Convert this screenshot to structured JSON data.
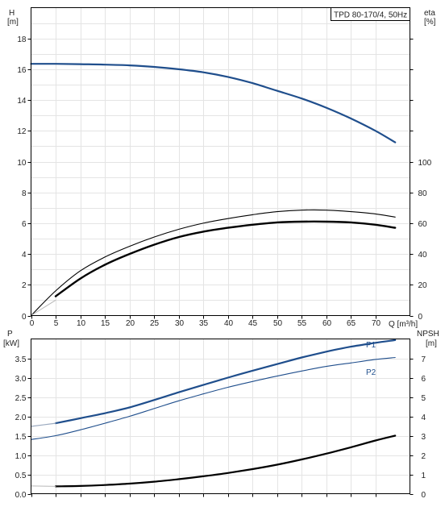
{
  "chart_data": [
    {
      "type": "line",
      "title_box": "TPD 80-170/4, 50Hz",
      "ylabel_left": "H",
      "ylabel_left_unit": "[m]",
      "ylabel_right": "eta",
      "ylabel_right_unit": "[%]",
      "xlabel": "Q [m³/h]",
      "xlim": [
        0,
        77
      ],
      "ylim_left": [
        0,
        20
      ],
      "ylim_right": [
        0,
        200
      ],
      "x_ticks": [
        "0",
        "5",
        "10",
        "15",
        "20",
        "25",
        "30",
        "35",
        "40",
        "45",
        "50",
        "55",
        "60",
        "65",
        "70"
      ],
      "y_left_ticks": [
        "0",
        "2",
        "4",
        "6",
        "8",
        "10",
        "12",
        "14",
        "16",
        "18"
      ],
      "y_right_ticks": [
        "0",
        "20",
        "40",
        "60",
        "80",
        "100"
      ],
      "grid": true,
      "colors": {
        "head": "#1f4e8c",
        "eta": "#000000"
      },
      "series": [
        {
          "axis": "left",
          "style": "head",
          "x": [
            0,
            5,
            10,
            15,
            20,
            25,
            30,
            35,
            40,
            45,
            50,
            55,
            60,
            65,
            70,
            74
          ],
          "values": [
            16.35,
            16.35,
            16.33,
            16.3,
            16.25,
            16.15,
            16.0,
            15.8,
            15.5,
            15.1,
            14.6,
            14.1,
            13.5,
            12.8,
            12.0,
            11.25
          ]
        },
        {
          "axis": "right",
          "style": "eta-thin",
          "x": [
            0,
            5,
            10,
            15,
            20,
            25,
            30,
            35,
            40,
            45,
            50,
            55,
            60,
            65,
            70,
            74
          ],
          "values": [
            0,
            16,
            29,
            38,
            45,
            51,
            56,
            60,
            63,
            65.5,
            67.5,
            68.5,
            68.5,
            67.5,
            66,
            64
          ]
        },
        {
          "axis": "right",
          "style": "eta-thick",
          "x": [
            5,
            10,
            15,
            20,
            25,
            30,
            35,
            40,
            45,
            50,
            55,
            60,
            65,
            70,
            74
          ],
          "values": [
            12.5,
            24,
            33,
            40,
            46,
            51,
            54.5,
            57,
            59,
            60.5,
            61,
            61,
            60.5,
            59,
            57
          ]
        },
        {
          "axis": "right",
          "style": "eta-light",
          "x": [
            0,
            5
          ],
          "values": [
            0,
            10
          ]
        }
      ]
    },
    {
      "type": "line",
      "ylabel_left": "P",
      "ylabel_left_unit": "[kW]",
      "ylabel_right": "NPSH",
      "ylabel_right_unit": "[m]",
      "xlim": [
        0,
        77
      ],
      "ylim_left": [
        0,
        4
      ],
      "ylim_right": [
        0,
        8
      ],
      "y_left_ticks": [
        "0.0",
        "0.5",
        "1.0",
        "1.5",
        "2.0",
        "2.5",
        "3.0",
        "3.5"
      ],
      "y_right_ticks": [
        "0",
        "1",
        "2",
        "3",
        "4",
        "5",
        "6",
        "7"
      ],
      "grid": true,
      "colors": {
        "power": "#1f4e8c",
        "npsh": "#000000"
      },
      "series": [
        {
          "name": "P1",
          "axis": "left",
          "style": "p1",
          "x": [
            5,
            10,
            15,
            20,
            25,
            30,
            35,
            40,
            45,
            50,
            55,
            60,
            65,
            70,
            74
          ],
          "values": [
            1.82,
            1.95,
            2.08,
            2.23,
            2.42,
            2.62,
            2.81,
            3.0,
            3.18,
            3.35,
            3.52,
            3.67,
            3.8,
            3.9,
            3.97
          ]
        },
        {
          "name": "P2",
          "axis": "left",
          "style": "p2",
          "x": [
            0,
            5,
            10,
            15,
            20,
            25,
            30,
            35,
            40,
            45,
            50,
            55,
            60,
            65,
            70,
            74
          ],
          "values": [
            1.4,
            1.5,
            1.65,
            1.82,
            2.0,
            2.2,
            2.4,
            2.58,
            2.75,
            2.9,
            3.04,
            3.17,
            3.29,
            3.38,
            3.47,
            3.52
          ]
        },
        {
          "axis": "left",
          "style": "p1-light",
          "x": [
            0,
            5
          ],
          "values": [
            1.74,
            1.82
          ]
        },
        {
          "axis": "right",
          "style": "npsh",
          "x": [
            5,
            10,
            15,
            20,
            25,
            30,
            35,
            40,
            45,
            50,
            55,
            60,
            65,
            70,
            74
          ],
          "values": [
            0.38,
            0.4,
            0.45,
            0.52,
            0.62,
            0.75,
            0.9,
            1.07,
            1.27,
            1.5,
            1.77,
            2.07,
            2.4,
            2.75,
            3.0
          ]
        },
        {
          "axis": "right",
          "style": "npsh-light",
          "x": [
            0,
            5
          ],
          "values": [
            0.4,
            0.38
          ]
        }
      ]
    }
  ]
}
